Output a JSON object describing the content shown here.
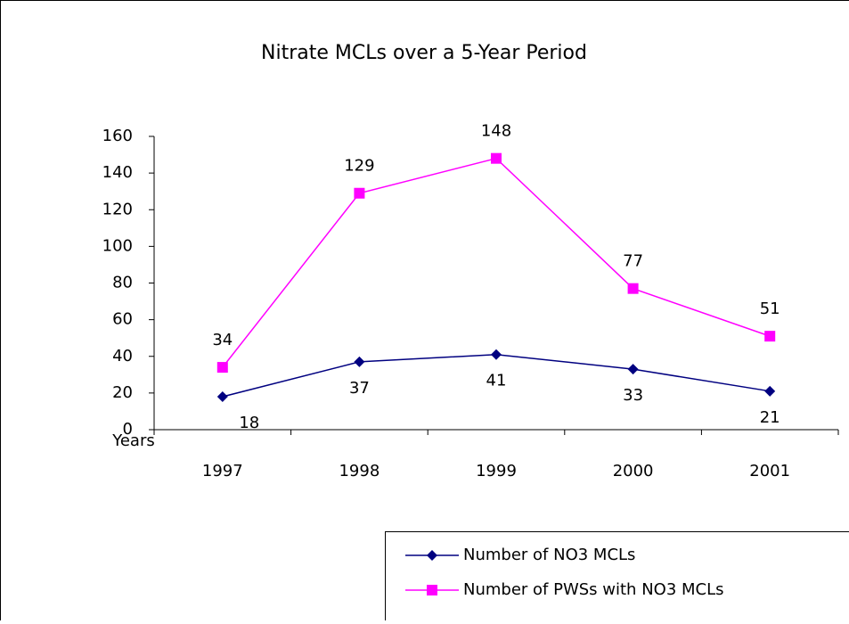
{
  "chart_data": {
    "type": "line",
    "title": "Nitrate MCLs over a 5-Year Period",
    "x_label": "Years",
    "categories": [
      "1997",
      "1998",
      "1999",
      "2000",
      "2001"
    ],
    "series": [
      {
        "name": "Number of NO3 MCLs",
        "color": "#000080",
        "marker": "diamond",
        "values": [
          18,
          37,
          41,
          33,
          21
        ]
      },
      {
        "name": "Number of PWSs with NO3 MCLs",
        "color": "#ff00ff",
        "marker": "square",
        "values": [
          34,
          129,
          148,
          77,
          51
        ]
      }
    ],
    "ylim": [
      0,
      160
    ],
    "yticks": [
      0,
      20,
      40,
      60,
      80,
      100,
      120,
      140,
      160
    ],
    "legend": "bottom-right"
  }
}
